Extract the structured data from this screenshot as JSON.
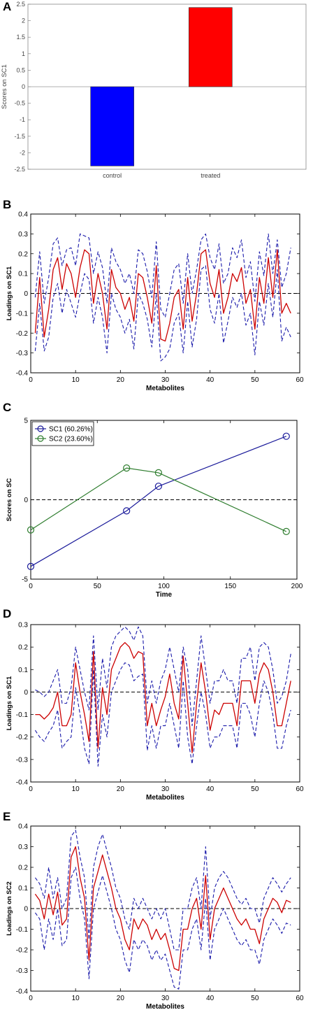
{
  "chart_data": [
    {
      "panel": "A",
      "type": "bar",
      "categories": [
        "control",
        "treated"
      ],
      "values": [
        -2.4,
        2.4
      ],
      "colors": [
        "#0000ff",
        "#ff0000"
      ],
      "xlabel": "",
      "ylabel": "Scores on SC1",
      "ylim": [
        -2.5,
        2.5
      ],
      "yticks": [
        "-2.5",
        "-2",
        "-1.5",
        "-1",
        "-0.5",
        "0",
        "0.5",
        "1",
        "1.5",
        "2",
        "2.5"
      ],
      "grid": false
    },
    {
      "panel": "B",
      "type": "line",
      "xlabel": "Metabolites",
      "ylabel": "Loadings on SC1",
      "xlim": [
        0,
        60
      ],
      "ylim": [
        -0.4,
        0.4
      ],
      "xticks": [
        "0",
        "10",
        "20",
        "30",
        "40",
        "50",
        "60"
      ],
      "yticks": [
        "-0.4",
        "-0.3",
        "-0.2",
        "-0.1",
        "0",
        "0.1",
        "0.2",
        "0.3",
        "0.4"
      ],
      "reference_line": 0,
      "x": [
        1,
        2,
        3,
        4,
        5,
        6,
        7,
        8,
        9,
        10,
        11,
        12,
        13,
        14,
        15,
        16,
        17,
        18,
        19,
        20,
        21,
        22,
        23,
        24,
        25,
        26,
        27,
        28,
        29,
        30,
        31,
        32,
        33,
        34,
        35,
        36,
        37,
        38,
        39,
        40,
        41,
        42,
        43,
        44,
        45,
        46,
        47,
        48,
        49,
        50,
        51,
        52,
        53,
        54,
        55,
        56,
        57,
        58
      ],
      "series": [
        {
          "role": "loading",
          "color": "#cc0000",
          "style": "solid",
          "values": [
            -0.2,
            0.08,
            -0.22,
            -0.08,
            0.12,
            0.18,
            0.02,
            0.15,
            0.1,
            -0.02,
            0.13,
            0.22,
            0.2,
            -0.05,
            0.1,
            0.0,
            -0.18,
            0.12,
            0.03,
            0.0,
            -0.08,
            -0.02,
            -0.14,
            0.1,
            0.08,
            -0.02,
            -0.15,
            0.14,
            -0.23,
            -0.24,
            -0.15,
            -0.02,
            0.02,
            -0.18,
            0.08,
            -0.14,
            0.0,
            0.2,
            0.22,
            0.05,
            -0.02,
            0.12,
            -0.1,
            -0.02,
            0.1,
            0.06,
            0.13,
            -0.05,
            0.02,
            -0.18,
            0.08,
            -0.05,
            0.18,
            -0.02,
            0.22,
            -0.1,
            -0.05,
            -0.1
          ]
        },
        {
          "role": "upper-bound",
          "color": "#1a1aaa",
          "style": "dashed",
          "values": [
            -0.02,
            0.21,
            -0.05,
            0.08,
            0.25,
            0.28,
            0.14,
            0.22,
            0.23,
            0.14,
            0.3,
            0.29,
            0.28,
            0.1,
            0.21,
            0.13,
            -0.05,
            0.23,
            0.16,
            0.12,
            0.05,
            0.1,
            0.0,
            0.22,
            0.2,
            0.11,
            -0.02,
            0.26,
            -0.08,
            -0.12,
            0.0,
            0.12,
            0.15,
            -0.05,
            0.2,
            0.0,
            0.12,
            0.27,
            0.3,
            0.18,
            0.12,
            0.25,
            0.05,
            0.1,
            0.23,
            0.18,
            0.27,
            0.08,
            0.16,
            -0.04,
            0.21,
            0.09,
            0.3,
            0.1,
            0.27,
            0.03,
            0.1,
            0.23
          ]
        },
        {
          "role": "lower-bound",
          "color": "#1a1aaa",
          "style": "dashed",
          "values": [
            -0.29,
            -0.05,
            -0.29,
            -0.22,
            -0.02,
            0.05,
            -0.1,
            0.02,
            -0.05,
            -0.12,
            0.0,
            0.1,
            0.07,
            -0.15,
            -0.02,
            -0.12,
            -0.3,
            0.0,
            -0.08,
            -0.12,
            -0.2,
            -0.13,
            -0.28,
            0.0,
            -0.05,
            -0.13,
            -0.27,
            0.0,
            -0.34,
            -0.32,
            -0.28,
            -0.15,
            -0.1,
            -0.3,
            -0.04,
            -0.27,
            -0.13,
            0.12,
            0.14,
            -0.08,
            -0.15,
            0.0,
            -0.25,
            -0.14,
            -0.02,
            -0.07,
            0.0,
            -0.16,
            -0.1,
            -0.31,
            -0.04,
            -0.16,
            0.05,
            -0.12,
            0.12,
            -0.24,
            -0.17,
            -0.22
          ]
        }
      ]
    },
    {
      "panel": "C",
      "type": "line",
      "xlabel": "Time",
      "ylabel": "Scores on SC",
      "xlim": [
        0,
        200
      ],
      "ylim": [
        -5,
        5
      ],
      "xticks": [
        "0",
        "50",
        "100",
        "150",
        "200"
      ],
      "yticks": [
        "-5",
        "0",
        "5"
      ],
      "reference_line": 0,
      "legend_position": "top-left",
      "x": [
        0,
        72,
        96,
        192
      ],
      "series": [
        {
          "name": "SC1 (60.26%)",
          "color": "#1a1a9a",
          "marker": "circle",
          "values": [
            -4.2,
            -0.7,
            0.85,
            4.0
          ]
        },
        {
          "name": "SC2 (23.60%)",
          "color": "#2e7d2e",
          "marker": "circle",
          "values": [
            -1.9,
            2.0,
            1.7,
            -2.0
          ]
        }
      ]
    },
    {
      "panel": "D",
      "type": "line",
      "xlabel": "Metabolites",
      "ylabel": "Loadings on SC1",
      "xlim": [
        0,
        60
      ],
      "ylim": [
        -0.4,
        0.3
      ],
      "xticks": [
        "0",
        "10",
        "20",
        "30",
        "40",
        "50",
        "60"
      ],
      "yticks": [
        "-0.4",
        "-0.3",
        "-0.2",
        "-0.1",
        "0",
        "0.1",
        "0.2",
        "0.3"
      ],
      "reference_line": 0,
      "x": [
        1,
        2,
        3,
        4,
        5,
        6,
        7,
        8,
        9,
        10,
        11,
        12,
        13,
        14,
        15,
        16,
        17,
        18,
        19,
        20,
        21,
        22,
        23,
        24,
        25,
        26,
        27,
        28,
        29,
        30,
        31,
        32,
        33,
        34,
        35,
        36,
        37,
        38,
        39,
        40,
        41,
        42,
        43,
        44,
        45,
        46,
        47,
        48,
        49,
        50,
        51,
        52,
        53,
        54,
        55,
        56,
        57,
        58
      ],
      "series": [
        {
          "role": "loading",
          "color": "#cc0000",
          "style": "solid",
          "values": [
            -0.1,
            -0.1,
            -0.12,
            -0.1,
            -0.07,
            0.0,
            -0.15,
            -0.15,
            -0.1,
            0.13,
            0.0,
            -0.1,
            -0.22,
            0.18,
            -0.25,
            0.02,
            -0.1,
            0.1,
            0.15,
            0.2,
            0.22,
            0.2,
            0.15,
            0.18,
            0.17,
            -0.15,
            -0.05,
            -0.15,
            -0.08,
            -0.02,
            0.08,
            -0.05,
            -0.12,
            0.16,
            -0.05,
            -0.27,
            -0.05,
            0.13,
            0.0,
            -0.17,
            -0.08,
            -0.1,
            -0.05,
            -0.05,
            -0.05,
            -0.15,
            0.05,
            0.05,
            0.05,
            -0.05,
            0.08,
            0.13,
            0.1,
            0.0,
            -0.15,
            -0.15,
            -0.05,
            0.05
          ]
        },
        {
          "role": "upper-bound",
          "color": "#1a1aaa",
          "style": "dashed",
          "values": [
            0.01,
            0.0,
            -0.02,
            0.0,
            0.05,
            0.1,
            -0.05,
            -0.05,
            0.02,
            0.2,
            0.1,
            0.0,
            -0.08,
            0.25,
            -0.08,
            0.15,
            0.02,
            0.2,
            0.25,
            0.27,
            0.29,
            0.27,
            0.23,
            0.29,
            0.25,
            -0.05,
            0.05,
            -0.05,
            0.05,
            0.1,
            0.2,
            0.1,
            0.0,
            0.2,
            0.1,
            -0.15,
            0.05,
            0.25,
            0.1,
            -0.05,
            0.05,
            0.05,
            0.1,
            0.05,
            0.05,
            -0.05,
            0.15,
            0.15,
            0.2,
            0.05,
            0.2,
            0.22,
            0.2,
            0.1,
            -0.05,
            -0.02,
            0.05,
            0.17
          ]
        },
        {
          "role": "lower-bound",
          "color": "#1a1aaa",
          "style": "dashed",
          "values": [
            -0.17,
            -0.2,
            -0.22,
            -0.18,
            -0.15,
            -0.08,
            -0.25,
            -0.22,
            -0.2,
            0.02,
            -0.1,
            -0.25,
            -0.32,
            0.1,
            -0.33,
            -0.1,
            -0.2,
            0.0,
            0.05,
            0.1,
            0.13,
            0.12,
            0.05,
            0.07,
            0.08,
            -0.26,
            -0.15,
            -0.25,
            -0.15,
            -0.15,
            -0.05,
            -0.15,
            -0.25,
            0.05,
            -0.2,
            -0.32,
            -0.15,
            0.0,
            -0.1,
            -0.25,
            -0.2,
            -0.2,
            -0.15,
            -0.15,
            -0.15,
            -0.25,
            -0.05,
            -0.05,
            -0.1,
            -0.2,
            -0.05,
            0.05,
            0.0,
            -0.1,
            -0.25,
            -0.25,
            -0.15,
            -0.08
          ]
        }
      ]
    },
    {
      "panel": "E",
      "type": "line",
      "xlabel": "Metabolites",
      "ylabel": "Loadings on SC2",
      "xlim": [
        0,
        60
      ],
      "ylim": [
        -0.4,
        0.4
      ],
      "xticks": [
        "0",
        "10",
        "20",
        "30",
        "40",
        "50",
        "60"
      ],
      "yticks": [
        "-0.4",
        "-0.3",
        "-0.2",
        "-0.1",
        "0",
        "0.1",
        "0.2",
        "0.3",
        "0.4"
      ],
      "reference_line": 0,
      "x": [
        1,
        2,
        3,
        4,
        5,
        6,
        7,
        8,
        9,
        10,
        11,
        12,
        13,
        14,
        15,
        16,
        17,
        18,
        19,
        20,
        21,
        22,
        23,
        24,
        25,
        26,
        27,
        28,
        29,
        30,
        31,
        32,
        33,
        34,
        35,
        36,
        37,
        38,
        39,
        40,
        41,
        42,
        43,
        44,
        45,
        46,
        47,
        48,
        49,
        50,
        51,
        52,
        53,
        54,
        55,
        56,
        57,
        58
      ],
      "series": [
        {
          "role": "loading",
          "color": "#cc0000",
          "style": "solid",
          "values": [
            0.07,
            0.04,
            -0.05,
            0.07,
            -0.03,
            0.08,
            -0.08,
            -0.05,
            0.25,
            0.3,
            0.15,
            0.05,
            -0.25,
            0.1,
            0.18,
            0.26,
            0.18,
            0.1,
            0.0,
            -0.05,
            -0.15,
            -0.2,
            -0.05,
            -0.1,
            -0.05,
            -0.08,
            -0.15,
            -0.1,
            -0.15,
            -0.12,
            -0.2,
            -0.29,
            -0.3,
            -0.1,
            -0.1,
            0.0,
            0.05,
            -0.1,
            0.16,
            -0.15,
            0.0,
            0.05,
            0.1,
            0.05,
            0.0,
            -0.05,
            -0.08,
            -0.05,
            -0.1,
            -0.1,
            -0.17,
            -0.05,
            0.0,
            0.05,
            0.03,
            -0.02,
            0.04,
            0.03
          ]
        },
        {
          "role": "upper-bound",
          "color": "#1a1aaa",
          "style": "dashed",
          "values": [
            0.15,
            0.12,
            0.05,
            0.2,
            0.05,
            0.15,
            0.0,
            0.05,
            0.35,
            0.38,
            0.25,
            0.15,
            -0.15,
            0.2,
            0.3,
            0.36,
            0.28,
            0.2,
            0.1,
            0.05,
            -0.05,
            -0.1,
            0.05,
            0.0,
            0.05,
            0.0,
            -0.05,
            0.0,
            -0.05,
            0.0,
            -0.1,
            -0.2,
            -0.2,
            0.0,
            0.0,
            0.1,
            0.15,
            0.0,
            0.3,
            -0.05,
            0.1,
            0.15,
            0.18,
            0.15,
            0.1,
            0.05,
            0.02,
            0.05,
            0.0,
            0.0,
            -0.07,
            0.05,
            0.1,
            0.15,
            0.12,
            0.08,
            0.12,
            0.15
          ]
        },
        {
          "role": "lower-bound",
          "color": "#1a1aaa",
          "style": "dashed",
          "values": [
            -0.02,
            -0.05,
            -0.2,
            -0.05,
            -0.15,
            0.0,
            -0.18,
            -0.15,
            0.15,
            0.2,
            0.05,
            -0.05,
            -0.34,
            0.0,
            0.08,
            0.16,
            0.08,
            0.0,
            -0.1,
            -0.15,
            -0.25,
            -0.31,
            -0.15,
            -0.2,
            -0.15,
            -0.18,
            -0.25,
            -0.2,
            -0.25,
            -0.22,
            -0.3,
            -0.38,
            -0.39,
            -0.2,
            -0.2,
            -0.1,
            -0.05,
            -0.2,
            0.05,
            -0.25,
            -0.1,
            -0.05,
            0.0,
            -0.05,
            -0.1,
            -0.15,
            -0.18,
            -0.15,
            -0.2,
            -0.2,
            -0.27,
            -0.15,
            -0.1,
            -0.05,
            -0.08,
            -0.12,
            -0.07,
            -0.08
          ]
        }
      ]
    }
  ]
}
